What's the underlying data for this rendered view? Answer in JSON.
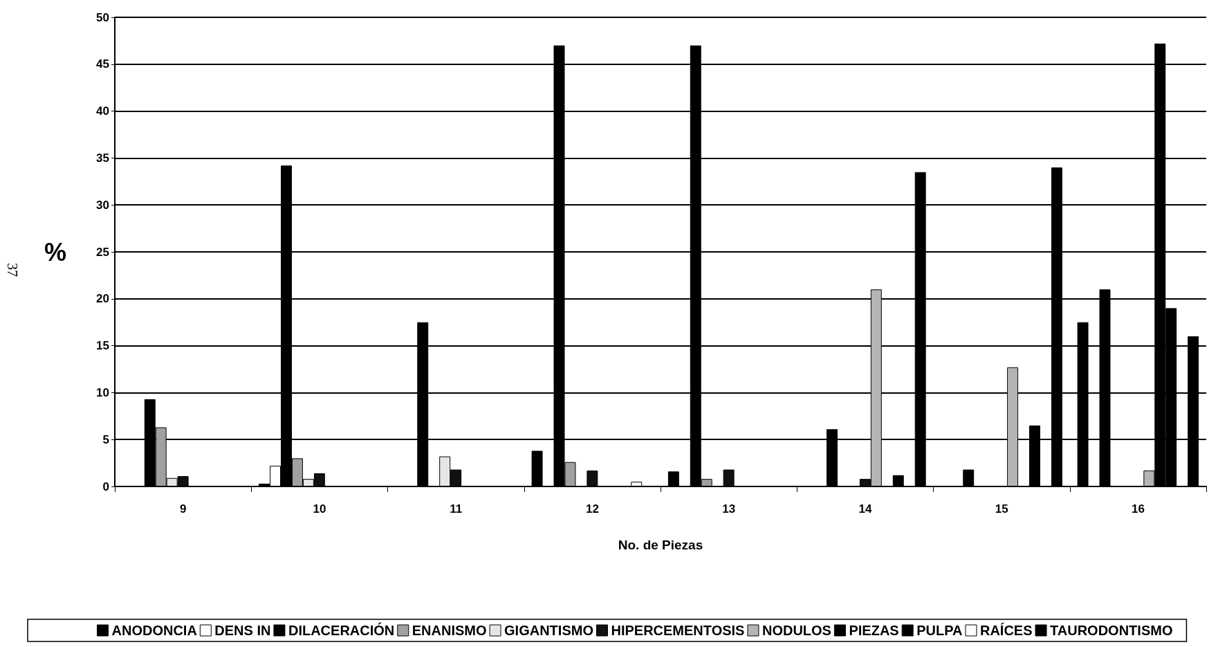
{
  "chart_data": {
    "type": "bar",
    "xlabel": "No. de Piezas",
    "ylabel": "%",
    "annotations": [
      "37"
    ],
    "categories": [
      "9",
      "10",
      "11",
      "12",
      "13",
      "14",
      "15",
      "16"
    ],
    "series": [
      {
        "name": "ANODONCIA",
        "color": "#000000",
        "values": [
          null,
          0.3,
          null,
          3.8,
          1.6,
          null,
          null,
          17.5
        ]
      },
      {
        "name": "DENS IN",
        "color": "#ffffff",
        "values": [
          null,
          2.2,
          null,
          null,
          null,
          null,
          null,
          null
        ]
      },
      {
        "name": "DILACERACIÓN",
        "color": "#000000",
        "values": [
          9.3,
          34.2,
          17.5,
          47,
          47,
          6.1,
          1.8,
          21
        ]
      },
      {
        "name": "ENANISMO",
        "color": "#a0a0a0",
        "values": [
          6.3,
          3.0,
          null,
          2.6,
          0.8,
          null,
          null,
          null
        ]
      },
      {
        "name": "GIGANTISMO",
        "color": "#e6e6e6",
        "values": [
          0.9,
          0.8,
          3.2,
          null,
          null,
          null,
          null,
          null
        ]
      },
      {
        "name": "HIPERCEMENTOSIS",
        "color": "#111111",
        "values": [
          1.1,
          1.4,
          1.8,
          1.7,
          1.8,
          0.8,
          null,
          null
        ]
      },
      {
        "name": "NODULOS",
        "color": "#b4b4b4",
        "values": [
          null,
          null,
          null,
          null,
          null,
          21,
          12.7,
          1.7
        ]
      },
      {
        "name": "PIEZAS",
        "color": "#000000",
        "values": [
          null,
          null,
          null,
          null,
          null,
          null,
          null,
          47.2
        ]
      },
      {
        "name": "PULPA",
        "color": "#000000",
        "values": [
          null,
          null,
          null,
          null,
          null,
          1.2,
          6.5,
          19
        ]
      },
      {
        "name": "RAÍCES",
        "color": "#ffffff",
        "values": [
          null,
          null,
          null,
          0.5,
          null,
          null,
          null,
          null
        ]
      },
      {
        "name": "TAURODONTISMO",
        "color": "#000000",
        "values": [
          null,
          null,
          null,
          null,
          null,
          33.5,
          34,
          16
        ]
      }
    ],
    "ylim": [
      0,
      50
    ],
    "yticks": [
      0,
      5,
      10,
      15,
      20,
      25,
      30,
      35,
      40,
      45,
      50
    ],
    "grid": "y",
    "legend": "bottom"
  }
}
